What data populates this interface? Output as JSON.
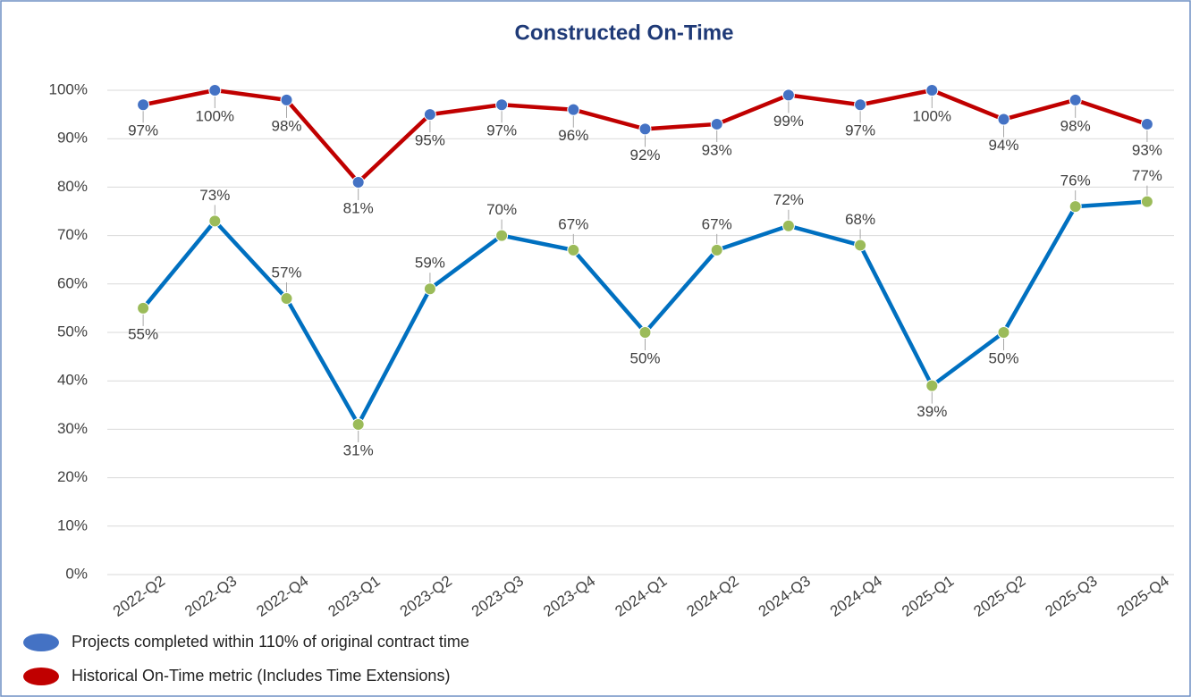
{
  "chart_data": {
    "type": "line",
    "title": "Constructed On-Time",
    "categories": [
      "2022-Q2",
      "2022-Q3",
      "2022-Q4",
      "2023-Q1",
      "2023-Q2",
      "2023-Q3",
      "2023-Q4",
      "2024-Q1",
      "2024-Q2",
      "2024-Q3",
      "2024-Q4",
      "2025-Q1",
      "2025-Q2",
      "2025-Q3",
      "2025-Q4"
    ],
    "series": [
      {
        "name": "Projects completed within 110% of original contract time",
        "color": "#0070c0",
        "marker_color": "#9bbb59",
        "legend_color": "#4472c4",
        "values": [
          55,
          73,
          57,
          31,
          59,
          70,
          67,
          50,
          67,
          72,
          68,
          39,
          50,
          76,
          77
        ],
        "value_labels": [
          "55%",
          "73%",
          "57%",
          "31%",
          "59%",
          "70%",
          "67%",
          "50%",
          "67%",
          "72%",
          "68%",
          "39%",
          "50%",
          "76%",
          "77%"
        ]
      },
      {
        "name": "Historical On-Time metric (Includes Time Extensions)",
        "color": "#c00000",
        "marker_color": "#4472c4",
        "legend_color": "#c00000",
        "values": [
          97,
          100,
          98,
          81,
          95,
          97,
          96,
          92,
          93,
          99,
          97,
          100,
          94,
          98,
          93
        ],
        "value_labels": [
          "97%",
          "100%",
          "98%",
          "81%",
          "95%",
          "97%",
          "96%",
          "92%",
          "93%",
          "99%",
          "97%",
          "100%",
          "94%",
          "98%",
          "93%"
        ]
      }
    ],
    "ylim": [
      0,
      100
    ],
    "yticks": [
      {
        "value": 0,
        "label": "0%"
      },
      {
        "value": 10,
        "label": "10%"
      },
      {
        "value": 20,
        "label": "20%"
      },
      {
        "value": 30,
        "label": "30%"
      },
      {
        "value": 40,
        "label": "40%"
      },
      {
        "value": 50,
        "label": "50%"
      },
      {
        "value": 60,
        "label": "60%"
      },
      {
        "value": 70,
        "label": "70%"
      },
      {
        "value": 80,
        "label": "80%"
      },
      {
        "value": 90,
        "label": "90%"
      },
      {
        "value": 100,
        "label": "100%"
      }
    ],
    "grid": true
  }
}
